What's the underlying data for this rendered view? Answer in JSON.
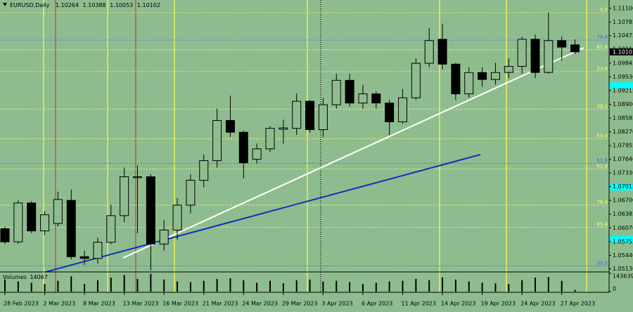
{
  "chart_data": {
    "type": "candlestick",
    "symbol": "EURUSD,Daily",
    "categories": [
      "28 Feb 2023",
      null,
      null,
      "2 Mar 2023",
      null,
      null,
      "8 Mar 2023",
      null,
      null,
      "13 Mar 2023",
      null,
      null,
      "16 Mar 2023",
      null,
      null,
      "21 Mar 2023",
      null,
      null,
      "24 Mar 2023",
      null,
      null,
      "29 Mar 2023",
      null,
      null,
      "3 Apr 2023",
      null,
      null,
      "6 Apr 2023",
      null,
      null,
      "11 Apr 2023",
      null,
      null,
      "14 Apr 2023",
      null,
      null,
      "19 Apr 2023",
      null,
      null,
      "24 Apr 2023",
      null,
      null,
      "27 Apr 2023",
      null
    ],
    "open": [
      1.0605,
      1.0575,
      1.0664,
      1.06,
      1.0617,
      1.067,
      1.0541,
      1.0537,
      1.0574,
      1.0635,
      1.0722,
      1.0724,
      1.057,
      1.0602,
      1.0659,
      1.0716,
      1.0761,
      1.0853,
      1.0826,
      1.0764,
      1.0788,
      1.0833,
      1.0835,
      1.0897,
      1.0832,
      1.0889,
      1.0945,
      1.0893,
      1.0914,
      1.0893,
      1.085,
      1.0905,
      1.0984,
      1.1039,
      1.0982,
      1.0914,
      1.0963,
      1.0947,
      1.0963,
      1.0977,
      1.1039,
      1.0963,
      1.1036,
      1.10264
    ],
    "high": [
      1.061,
      1.067,
      1.0668,
      1.0645,
      1.069,
      1.0695,
      1.0555,
      1.0585,
      1.066,
      1.0745,
      1.075,
      1.073,
      1.0625,
      1.0675,
      1.073,
      1.0775,
      1.088,
      1.091,
      1.083,
      1.08,
      1.084,
      1.0855,
      1.0915,
      1.09,
      1.0905,
      1.096,
      1.096,
      1.0935,
      1.092,
      1.09,
      1.0925,
      1.0995,
      1.1065,
      1.1075,
      1.0985,
      1.0975,
      1.0975,
      1.0985,
      1.0995,
      1.1045,
      1.105,
      1.11,
      1.1045,
      1.10388
    ],
    "low": [
      1.057,
      1.057,
      1.0595,
      1.059,
      1.061,
      1.0535,
      1.0522,
      1.0525,
      1.057,
      1.062,
      1.0595,
      1.051,
      1.0555,
      1.058,
      1.064,
      1.07,
      1.0745,
      1.0815,
      1.072,
      1.0755,
      1.078,
      1.08,
      1.082,
      1.0825,
      1.0815,
      1.088,
      1.0885,
      1.088,
      1.088,
      1.082,
      1.0845,
      1.09,
      1.0975,
      1.097,
      1.09,
      1.0905,
      1.093,
      1.0935,
      1.095,
      1.096,
      1.095,
      1.096,
      1.099,
      1.10053
    ],
    "close": [
      1.0575,
      1.0664,
      1.06,
      1.0637,
      1.0672,
      1.0541,
      1.0537,
      1.0574,
      1.0635,
      1.0724,
      1.0724,
      1.057,
      1.0602,
      1.0659,
      1.0716,
      1.0761,
      1.0853,
      1.0826,
      1.0756,
      1.0788,
      1.0835,
      1.0836,
      1.0897,
      1.0832,
      1.0889,
      1.0945,
      1.0893,
      1.0914,
      1.0893,
      1.085,
      1.0905,
      1.0984,
      1.1036,
      1.0982,
      1.0914,
      1.0963,
      1.0947,
      1.0963,
      1.0977,
      1.1039,
      1.0963,
      1.1036,
      1.1021,
      1.10102
    ],
    "ylim": [
      1.0506,
      1.1129
    ],
    "yticks": [
      {
        "value": 1.111,
        "label": "1.11100"
      },
      {
        "value": 1.10785,
        "label": "1.10785"
      },
      {
        "value": 1.10475,
        "label": "1.10475"
      },
      {
        "value": 1.1016,
        "label": "1.10160"
      },
      {
        "value": 1.09845,
        "label": "1.09845"
      },
      {
        "value": 1.0953,
        "label": "1.09530"
      },
      {
        "value": 1.09215,
        "label": "1.09215"
      },
      {
        "value": 1.089,
        "label": "1.08900"
      },
      {
        "value": 1.08585,
        "label": "1.08585"
      },
      {
        "value": 1.0827,
        "label": "1.08270"
      },
      {
        "value": 1.07955,
        "label": "1.07955"
      },
      {
        "value": 1.0764,
        "label": "1.07640"
      },
      {
        "value": 1.0733,
        "label": "1.07330"
      },
      {
        "value": 1.07015,
        "label": "1.07015"
      },
      {
        "value": 1.067,
        "label": "1.06700"
      },
      {
        "value": 1.06385,
        "label": "1.06385"
      },
      {
        "value": 1.0607,
        "label": "1.06070"
      },
      {
        "value": 1.05755,
        "label": "1.05755"
      },
      {
        "value": 1.0544,
        "label": "1.05440"
      },
      {
        "value": 1.0513,
        "label": "1.05130"
      }
    ],
    "up_color": "#8fbc8f",
    "down_color": "#000000",
    "levels": [
      {
        "label": "0.0",
        "value": 1.11,
        "color": "#ffff66"
      },
      {
        "label": "76.4",
        "value": 1.1037,
        "color": "#4060ff"
      },
      {
        "label": "61.8",
        "value": 1.1015,
        "color": "#ffff66"
      },
      {
        "label": "23.6",
        "value": 1.0965,
        "color": "#ffff66"
      },
      {
        "label": "38.2",
        "value": 1.0879,
        "color": "#ffff66"
      },
      {
        "label": "50.0",
        "value": 1.0811,
        "color": "#ffff66"
      },
      {
        "label": "61.8",
        "value": 1.0755,
        "color": "#4060ff"
      },
      {
        "label": "61.8",
        "value": 1.0742,
        "color": "#ffff66"
      },
      {
        "label": "76.4",
        "value": 1.0659,
        "color": "#ffff66"
      },
      {
        "label": "85.4",
        "value": 1.0608,
        "color": "#ffff66"
      },
      {
        "label": "50.0",
        "value": 1.052,
        "color": "#4060ff"
      }
    ],
    "volumes": {
      "name": "Volumes",
      "color": "#000000",
      "values": [
        95000,
        80000,
        70000,
        60000,
        85000,
        120000,
        60000,
        90000,
        110000,
        130000,
        100000,
        140000,
        95000,
        80000,
        75000,
        85000,
        100000,
        105000,
        90000,
        70000,
        85000,
        65000,
        90000,
        95000,
        80000,
        85000,
        75000,
        60000,
        70000,
        80000,
        85000,
        100000,
        90000,
        110000,
        95000,
        80000,
        70000,
        65000,
        60000,
        90000,
        110000,
        115000,
        85000,
        14067
      ],
      "ylim": [
        0,
        143639
      ],
      "yticks": [
        0,
        143639
      ]
    }
  }
}
